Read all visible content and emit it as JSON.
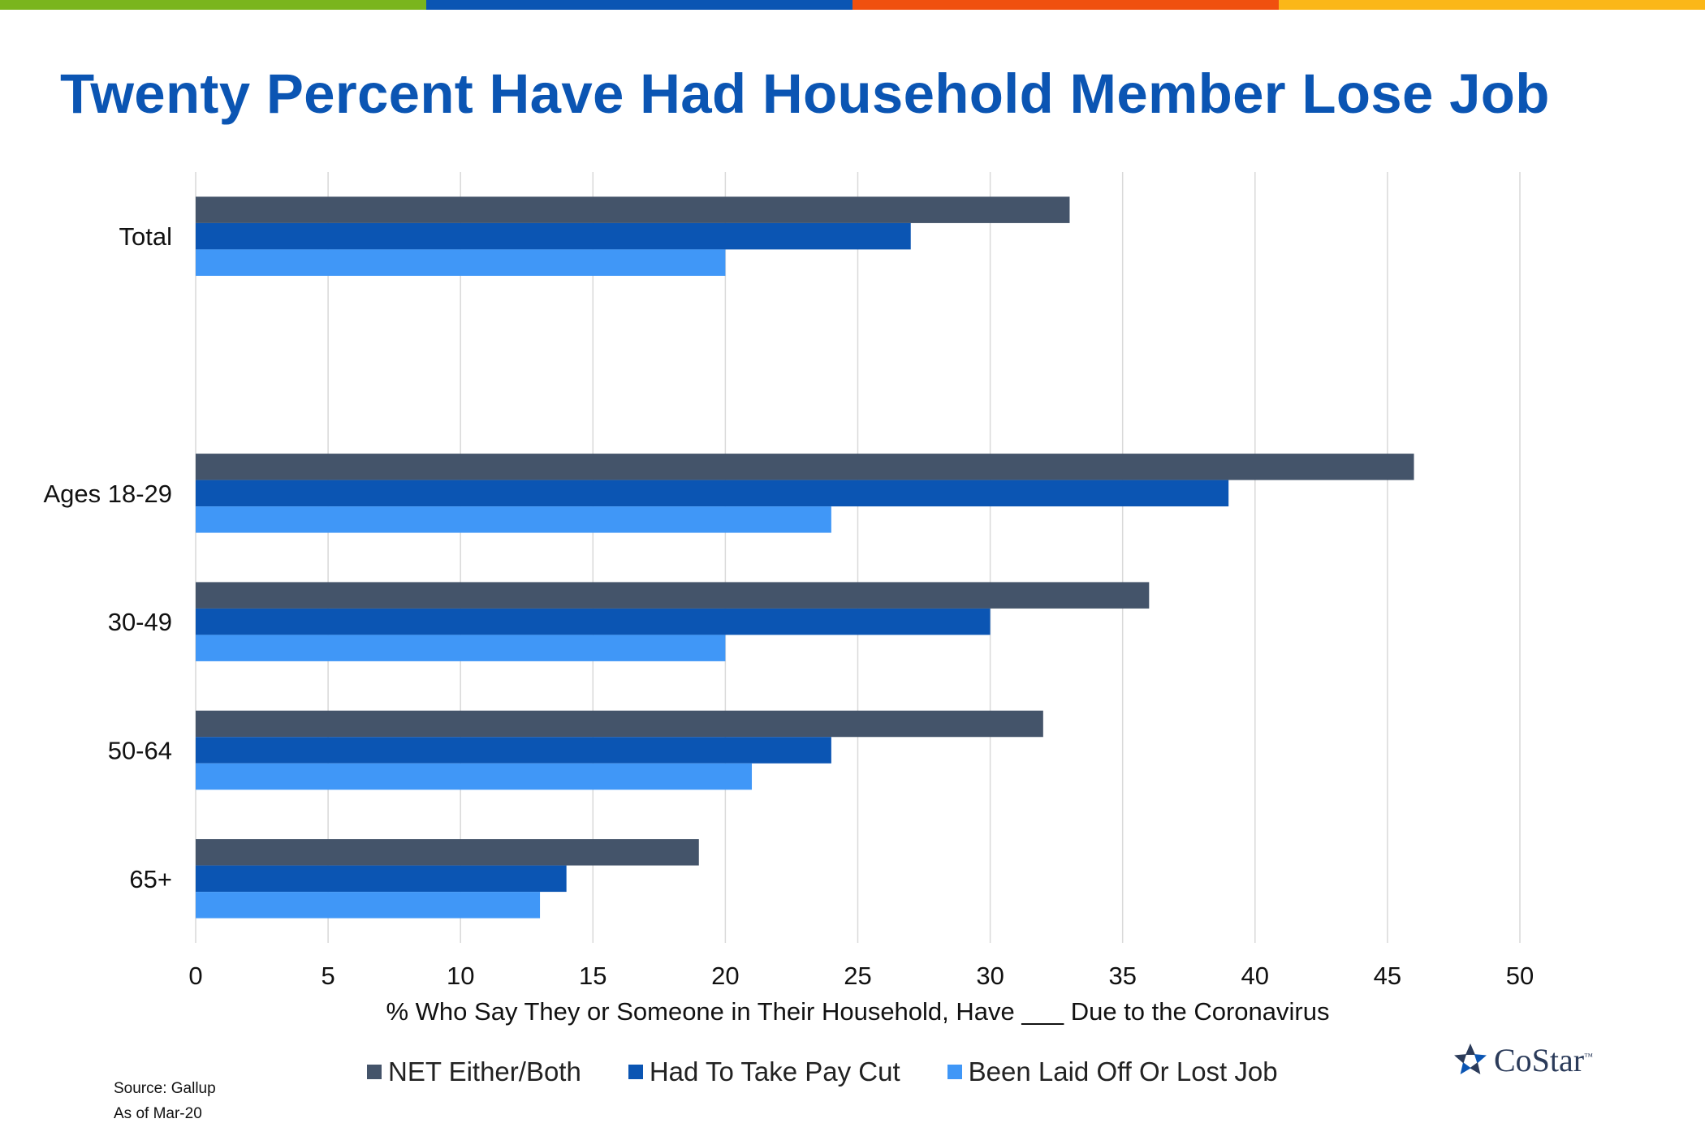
{
  "colors": {
    "top_bar": [
      "#7ab51d",
      "#0b55b3",
      "#f0500f",
      "#fbb718"
    ],
    "title": "#0b55b3",
    "net": "#44546a",
    "pay_cut": "#0b55b3",
    "laid_off": "#4097f7",
    "grid": "#d9d9d9"
  },
  "title": "Twenty Percent Have Had Household Member Lose Job",
  "source": "Source: Gallup",
  "as_of": "As of Mar-20",
  "logo": {
    "text": "CoStar",
    "tm": "™",
    "icon": "costar-star-icon"
  },
  "chart_data": {
    "type": "bar",
    "orientation": "horizontal",
    "categories": [
      "Total",
      "",
      "Ages 18-29",
      "30-49",
      "50-64",
      "65+"
    ],
    "series": [
      {
        "name": "NET Either/Both",
        "values": [
          33,
          null,
          46,
          36,
          32,
          19
        ]
      },
      {
        "name": "Had To Take Pay Cut",
        "values": [
          27,
          null,
          39,
          30,
          24,
          14
        ]
      },
      {
        "name": "Been Laid Off Or Lost Job",
        "values": [
          20,
          null,
          24,
          20,
          21,
          13
        ]
      }
    ],
    "xlabel": "% Who Say They or Someone in Their Household, Have ___ Due to the Coronavirus",
    "ylabel": "",
    "xlim": [
      0,
      50
    ],
    "xticks": [
      "0",
      "5",
      "10",
      "15",
      "20",
      "25",
      "30",
      "35",
      "40",
      "45",
      "50"
    ],
    "grid": "vertical",
    "legend_position": "bottom"
  }
}
